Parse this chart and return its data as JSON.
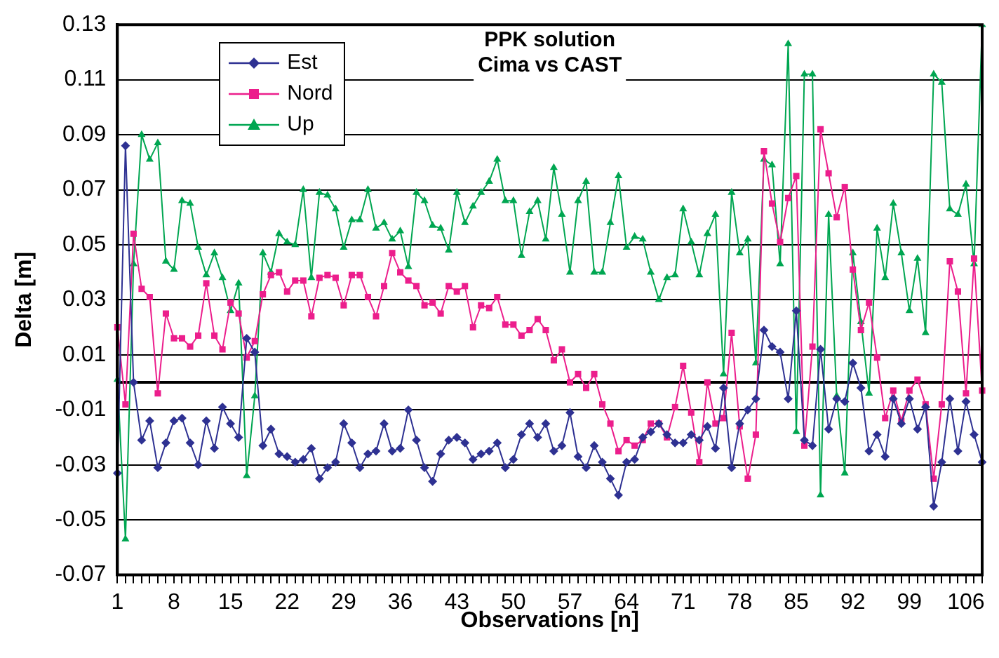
{
  "chart_data": {
    "type": "line",
    "title": "PPK solution",
    "subtitle": "Cima vs CAST",
    "xlabel": "Observations [n]",
    "ylabel": "Delta [m]",
    "categories": [
      "1",
      null,
      null,
      null,
      null,
      null,
      null,
      "8",
      null,
      null,
      null,
      null,
      null,
      null,
      "15",
      null,
      null,
      null,
      null,
      null,
      null,
      "22",
      null,
      null,
      null,
      null,
      null,
      null,
      "29",
      null,
      null,
      null,
      null,
      null,
      null,
      "36",
      null,
      null,
      null,
      null,
      null,
      null,
      "43",
      null,
      null,
      null,
      null,
      null,
      null,
      "50",
      null,
      null,
      null,
      null,
      null,
      null,
      "57",
      null,
      null,
      null,
      null,
      null,
      null,
      "64",
      null,
      null,
      null,
      null,
      null,
      null,
      "71",
      null,
      null,
      null,
      null,
      null,
      null,
      "78",
      null,
      null,
      null,
      null,
      null,
      null,
      "85",
      null,
      null,
      null,
      null,
      null,
      null,
      "92",
      null,
      null,
      null,
      null,
      null,
      null,
      "99",
      null,
      null,
      null,
      null,
      null,
      null,
      "106",
      null,
      null
    ],
    "series": [
      {
        "name": "Est",
        "color": "#2e3192",
        "marker": "diamond",
        "values": [
          -0.033,
          0.086,
          0.0,
          -0.021,
          -0.014,
          -0.031,
          -0.022,
          -0.014,
          -0.013,
          -0.022,
          -0.03,
          -0.014,
          -0.024,
          -0.009,
          -0.015,
          -0.02,
          0.016,
          0.011,
          -0.023,
          -0.017,
          -0.026,
          -0.027,
          -0.029,
          -0.028,
          -0.024,
          -0.035,
          -0.031,
          -0.029,
          -0.015,
          -0.022,
          -0.031,
          -0.026,
          -0.025,
          -0.015,
          -0.025,
          -0.024,
          -0.01,
          -0.021,
          -0.031,
          -0.036,
          -0.026,
          -0.021,
          -0.02,
          -0.022,
          -0.028,
          -0.026,
          -0.025,
          -0.022,
          -0.031,
          -0.028,
          -0.019,
          -0.015,
          -0.02,
          -0.015,
          -0.025,
          -0.023,
          -0.011,
          -0.027,
          -0.031,
          -0.023,
          -0.029,
          -0.035,
          -0.041,
          -0.029,
          -0.028,
          -0.02,
          -0.018,
          -0.015,
          -0.019,
          -0.022,
          -0.022,
          -0.019,
          -0.021,
          -0.016,
          -0.024,
          -0.002,
          -0.031,
          -0.015,
          -0.01,
          -0.006,
          0.019,
          0.013,
          0.011,
          -0.006,
          0.026,
          -0.021,
          -0.023,
          0.012,
          -0.017,
          -0.006,
          -0.007,
          0.007,
          -0.002,
          -0.025,
          -0.019,
          -0.027,
          -0.006,
          -0.015,
          -0.006,
          -0.017,
          -0.009,
          -0.045,
          -0.029,
          -0.006,
          -0.025,
          -0.007,
          -0.019,
          -0.029
        ]
      },
      {
        "name": "Nord",
        "color": "#ec1e8c",
        "marker": "square",
        "values": [
          0.02,
          -0.008,
          0.054,
          0.034,
          0.031,
          -0.004,
          0.025,
          0.016,
          0.016,
          0.013,
          0.017,
          0.036,
          0.017,
          0.012,
          0.029,
          0.025,
          0.009,
          0.015,
          0.032,
          0.039,
          0.04,
          0.033,
          0.037,
          0.037,
          0.024,
          0.038,
          0.039,
          0.038,
          0.028,
          0.039,
          0.039,
          0.031,
          0.024,
          0.035,
          0.047,
          0.04,
          0.037,
          0.035,
          0.028,
          0.029,
          0.025,
          0.035,
          0.033,
          0.035,
          0.02,
          0.028,
          0.027,
          0.031,
          0.021,
          0.021,
          0.017,
          0.019,
          0.023,
          0.019,
          0.008,
          0.012,
          0.0,
          0.003,
          -0.002,
          0.003,
          -0.008,
          -0.015,
          -0.025,
          -0.021,
          -0.023,
          -0.021,
          -0.015,
          -0.015,
          -0.02,
          -0.009,
          0.006,
          -0.011,
          -0.029,
          0.0,
          -0.015,
          -0.013,
          0.018,
          -0.016,
          -0.035,
          -0.019,
          0.084,
          0.065,
          0.051,
          0.067,
          0.075,
          -0.023,
          0.013,
          0.092,
          0.076,
          0.06,
          0.071,
          0.041,
          0.019,
          0.029,
          0.009,
          -0.013,
          -0.003,
          -0.014,
          -0.003,
          0.001,
          -0.008,
          -0.035,
          -0.008,
          0.044,
          0.033,
          -0.004,
          0.045,
          -0.003
        ]
      },
      {
        "name": "Up",
        "color": "#00a651",
        "marker": "triangle",
        "values": [
          0.001,
          -0.057,
          0.043,
          0.09,
          0.081,
          0.087,
          0.044,
          0.041,
          0.066,
          0.065,
          0.049,
          0.039,
          0.047,
          0.038,
          0.026,
          0.036,
          -0.034,
          -0.005,
          0.047,
          0.04,
          0.054,
          0.051,
          0.05,
          0.07,
          0.038,
          0.069,
          0.068,
          0.063,
          0.049,
          0.059,
          0.059,
          0.07,
          0.056,
          0.058,
          0.052,
          0.055,
          0.042,
          0.069,
          0.066,
          0.057,
          0.056,
          0.048,
          0.069,
          0.058,
          0.064,
          0.069,
          0.073,
          0.081,
          0.066,
          0.066,
          0.046,
          0.062,
          0.066,
          0.052,
          0.078,
          0.061,
          0.04,
          0.066,
          0.073,
          0.04,
          0.04,
          0.058,
          0.075,
          0.049,
          0.053,
          0.052,
          0.04,
          0.03,
          0.038,
          0.039,
          0.063,
          0.051,
          0.039,
          0.054,
          0.061,
          0.003,
          0.069,
          0.047,
          0.052,
          0.007,
          0.081,
          0.079,
          0.043,
          0.123,
          -0.018,
          0.112,
          0.112,
          -0.041,
          0.061,
          -0.005,
          -0.033,
          0.047,
          0.022,
          -0.004,
          0.056,
          0.038,
          0.065,
          0.047,
          0.026,
          0.045,
          0.018,
          0.112,
          0.109,
          0.063,
          0.061,
          0.072,
          0.043,
          0.13
        ]
      }
    ],
    "ylim": [
      -0.07,
      0.13
    ],
    "yticks": [
      -0.07,
      -0.05,
      -0.03,
      -0.01,
      0.01,
      0.03,
      0.05,
      0.07,
      0.09,
      0.11,
      0.13
    ],
    "grid": "y",
    "legend": "top left",
    "line_style": "solid"
  }
}
